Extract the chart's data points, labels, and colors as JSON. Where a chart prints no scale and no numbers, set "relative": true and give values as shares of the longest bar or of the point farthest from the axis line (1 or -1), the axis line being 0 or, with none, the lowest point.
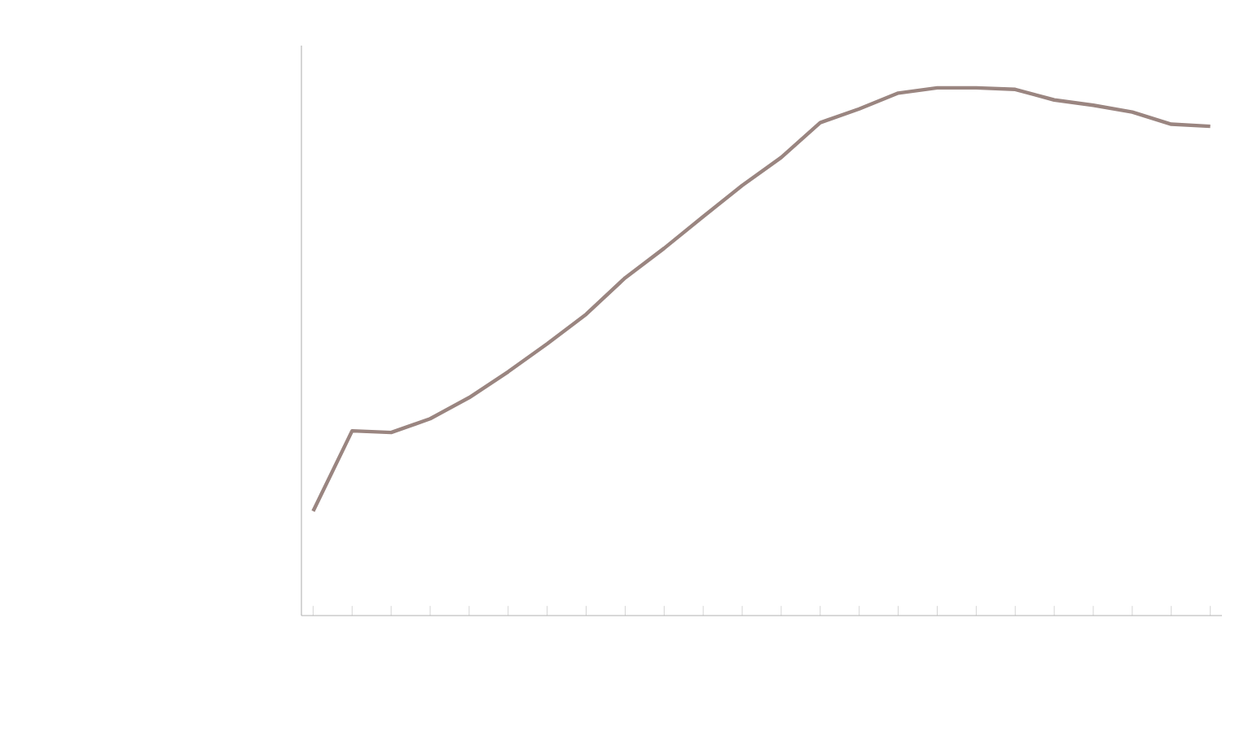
{
  "chart_data": {
    "type": "line",
    "relative": true,
    "categories": [
      null,
      null,
      null,
      null,
      null,
      null,
      null,
      null,
      null,
      null,
      null,
      null,
      null,
      null,
      null,
      null,
      null,
      null,
      null,
      null,
      null,
      null,
      null,
      null
    ],
    "series": [
      {
        "color": "#9a8580",
        "values": [
          0.198,
          0.35,
          0.347,
          0.373,
          0.413,
          0.462,
          0.515,
          0.571,
          0.64,
          0.696,
          0.756,
          0.815,
          0.868,
          0.934,
          0.96,
          0.99,
          1,
          1,
          0.997,
          0.977,
          0.967,
          0.954,
          0.931,
          0.927
        ]
      }
    ],
    "marker": "none",
    "line_style": "solid"
  }
}
